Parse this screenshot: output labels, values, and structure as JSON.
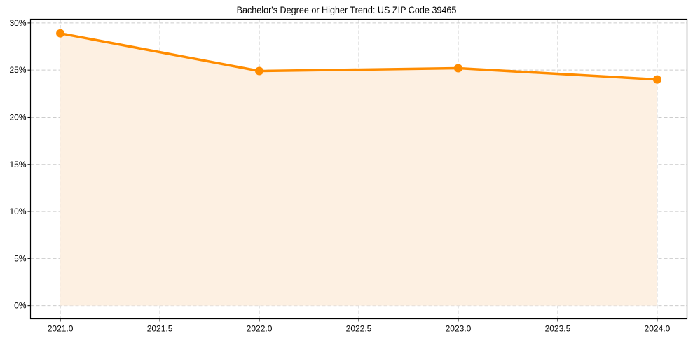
{
  "chart_data": {
    "type": "line",
    "title": "Bachelor's Degree or Higher Trend: US ZIP Code 39465",
    "xlabel": "",
    "ylabel": "",
    "x": [
      2021,
      2022,
      2023,
      2024
    ],
    "series": [
      {
        "name": "Bachelor's Degree or Higher",
        "values": [
          28.9,
          24.9,
          25.2,
          24.0
        ],
        "color": "#ff8c00",
        "fill": "#fdf0e2",
        "marker": "circle"
      }
    ],
    "xticks": [
      "2021.0",
      "2021.5",
      "2022.0",
      "2022.5",
      "2023.0",
      "2023.5",
      "2024.0"
    ],
    "yticks": [
      "0%",
      "5%",
      "10%",
      "15%",
      "20%",
      "25%",
      "30%"
    ],
    "xlim": [
      2020.85,
      2024.15
    ],
    "ylim": [
      -1.4,
      30.4
    ],
    "grid": true,
    "legend": null
  }
}
